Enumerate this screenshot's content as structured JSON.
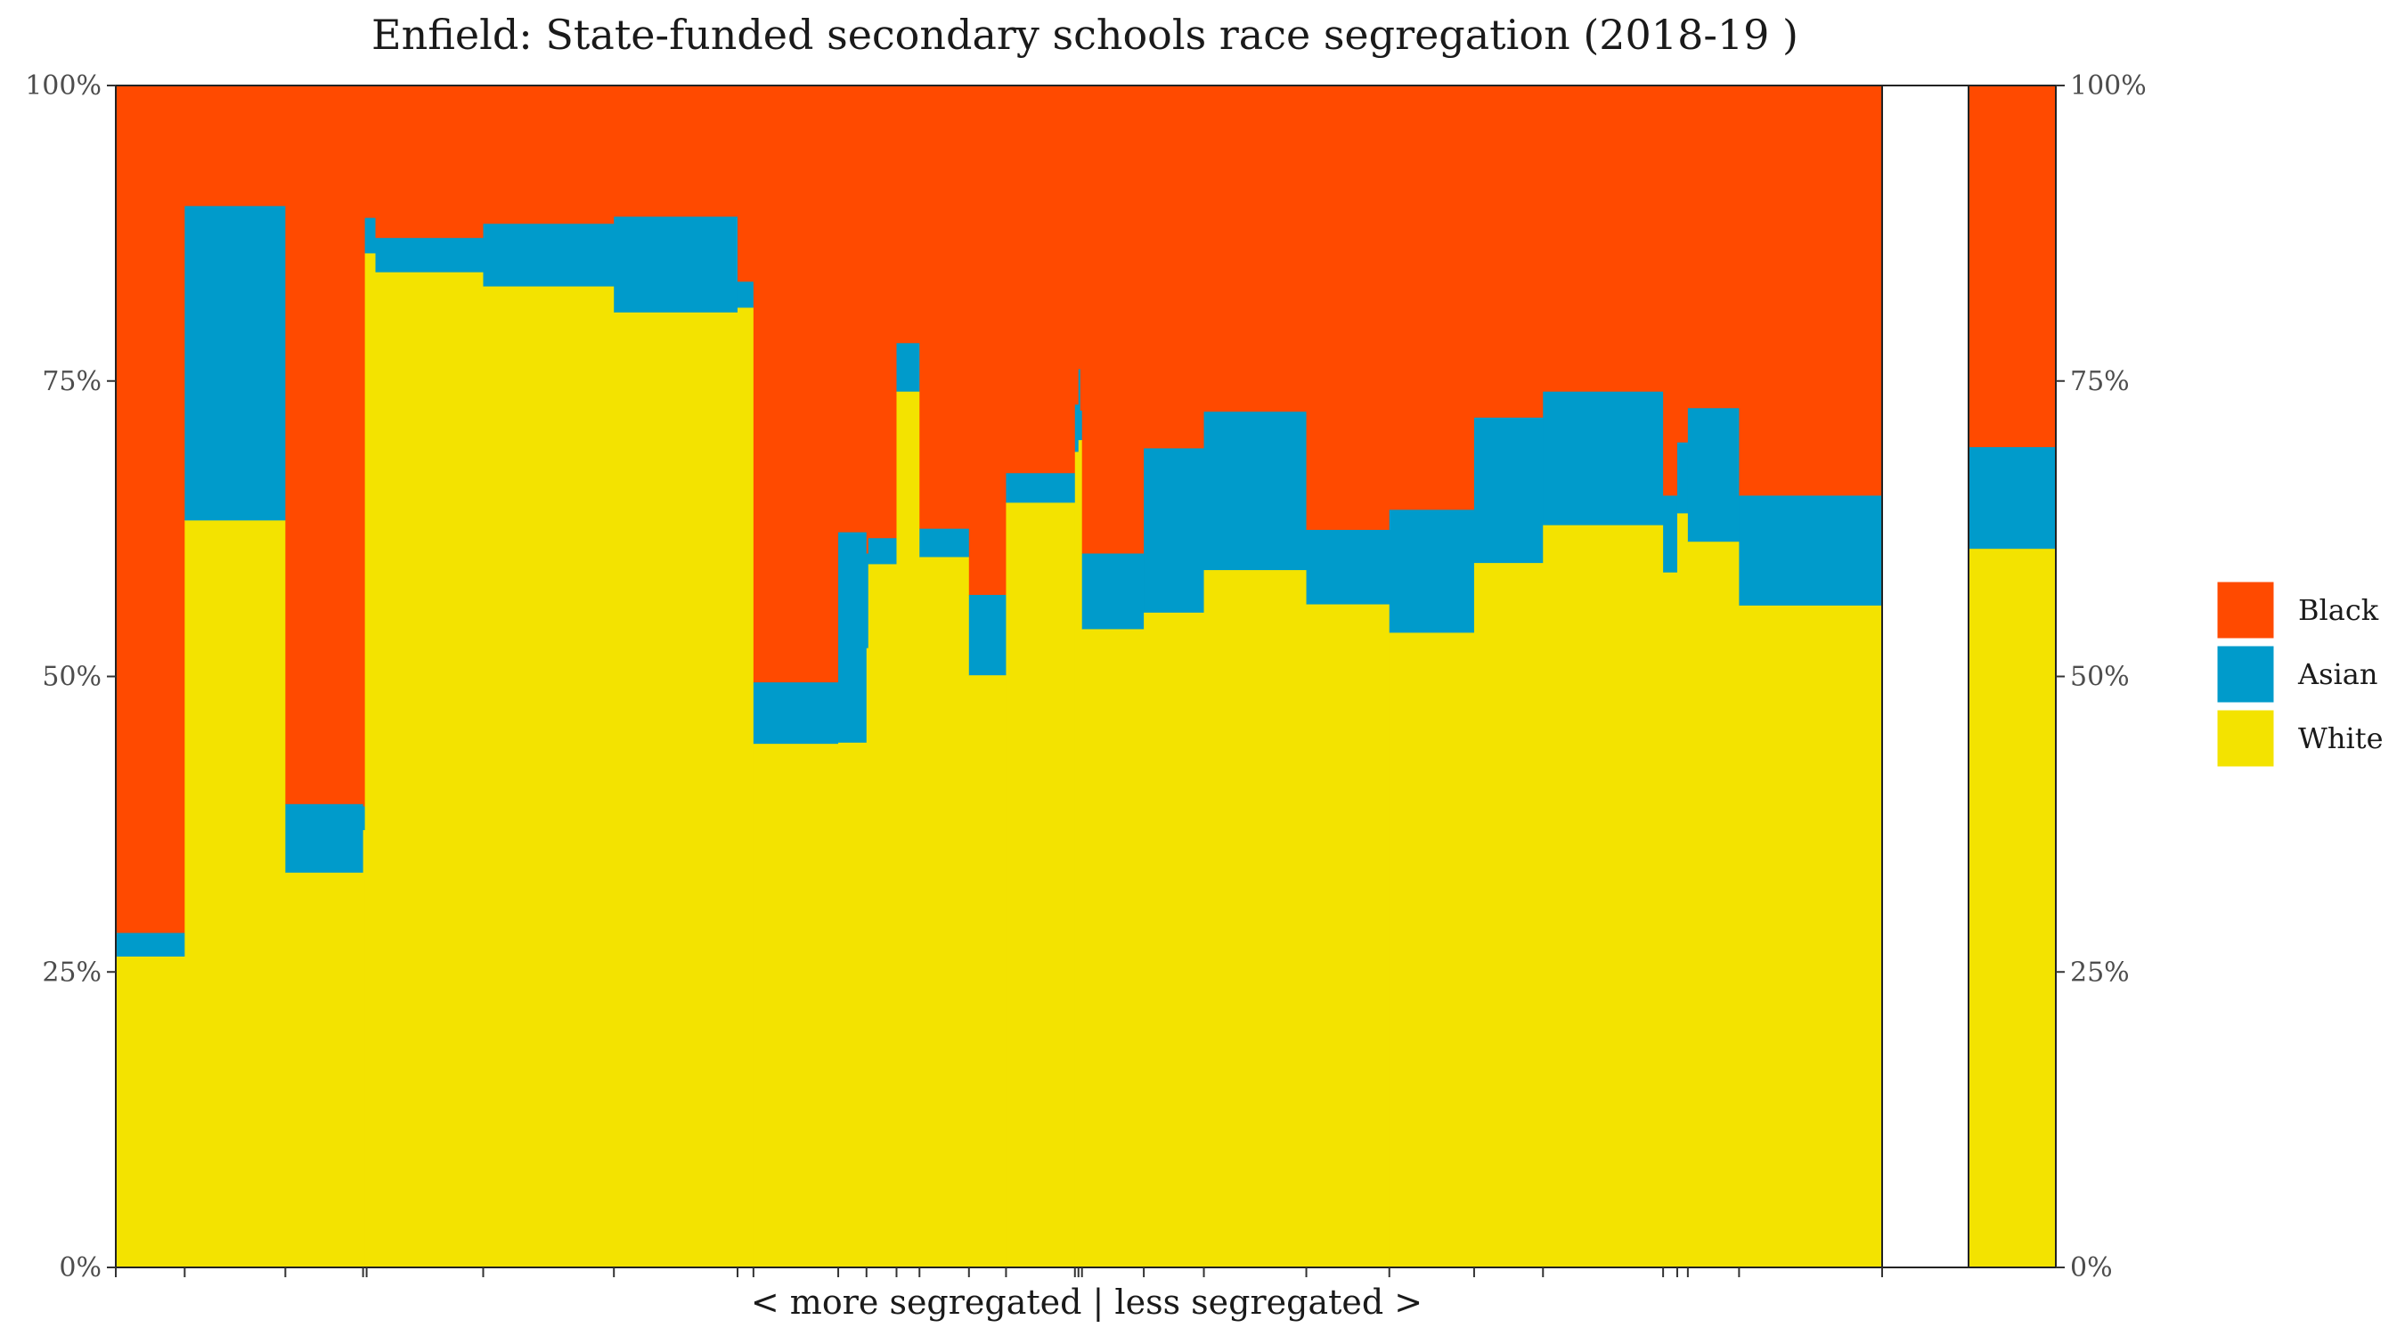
{
  "chart_data": {
    "type": "bar",
    "subtype": "stacked-variable-width",
    "title": "Enfield: State-funded secondary schools race segregation (2018-19 )",
    "xlabel": "< more segregated | less segregated >",
    "ylabel": "",
    "y_tick_labels": [
      "0%",
      "25%",
      "50%",
      "75%",
      "100%"
    ],
    "ylim": [
      0,
      1
    ],
    "grid": false,
    "legend_position": "right",
    "stack_order_bottom_to_top": [
      "White",
      "Asian",
      "Black"
    ],
    "series": [
      {
        "name": "Black",
        "color": "#FF4A00"
      },
      {
        "name": "Asian",
        "color": "#009BCB"
      },
      {
        "name": "White",
        "color": "#F3E300"
      }
    ],
    "x_range": [
      0,
      1
    ],
    "schools": [
      {
        "x0": 0.0,
        "x1": 0.039,
        "white": 0.263,
        "asian": 0.02
      },
      {
        "x0": 0.039,
        "x1": 0.096,
        "white": 0.632,
        "asian": 0.266
      },
      {
        "x0": 0.096,
        "x1": 0.14,
        "white": 0.334,
        "asian": 0.058
      },
      {
        "x0": 0.14,
        "x1": 0.141,
        "white": 0.37,
        "asian": 0.02
      },
      {
        "x0": 0.141,
        "x1": 0.147,
        "white": 0.858,
        "asian": 0.03
      },
      {
        "x0": 0.147,
        "x1": 0.208,
        "white": 0.842,
        "asian": 0.029
      },
      {
        "x0": 0.208,
        "x1": 0.282,
        "white": 0.83,
        "asian": 0.053
      },
      {
        "x0": 0.282,
        "x1": 0.352,
        "white": 0.808,
        "asian": 0.081
      },
      {
        "x0": 0.352,
        "x1": 0.361,
        "white": 0.812,
        "asian": 0.022
      },
      {
        "x0": 0.361,
        "x1": 0.409,
        "white": 0.443,
        "asian": 0.052
      },
      {
        "x0": 0.409,
        "x1": 0.425,
        "white": 0.444,
        "asian": 0.178
      },
      {
        "x0": 0.425,
        "x1": 0.426,
        "white": 0.524,
        "asian": 0.08
      },
      {
        "x0": 0.426,
        "x1": 0.442,
        "white": 0.595,
        "asian": 0.022
      },
      {
        "x0": 0.442,
        "x1": 0.455,
        "white": 0.741,
        "asian": 0.041
      },
      {
        "x0": 0.455,
        "x1": 0.483,
        "white": 0.601,
        "asian": 0.024
      },
      {
        "x0": 0.483,
        "x1": 0.504,
        "white": 0.501,
        "asian": 0.068
      },
      {
        "x0": 0.504,
        "x1": 0.543,
        "white": 0.647,
        "asian": 0.025
      },
      {
        "x0": 0.543,
        "x1": 0.545,
        "white": 0.69,
        "asian": 0.04
      },
      {
        "x0": 0.545,
        "x1": 0.546,
        "white": 0.7,
        "asian": 0.06
      },
      {
        "x0": 0.546,
        "x1": 0.547,
        "white": 0.7,
        "asian": 0.025
      },
      {
        "x0": 0.547,
        "x1": 0.582,
        "white": 0.54,
        "asian": 0.064
      },
      {
        "x0": 0.582,
        "x1": 0.616,
        "white": 0.554,
        "asian": 0.139
      },
      {
        "x0": 0.616,
        "x1": 0.674,
        "white": 0.59,
        "asian": 0.134
      },
      {
        "x0": 0.674,
        "x1": 0.721,
        "white": 0.561,
        "asian": 0.063
      },
      {
        "x0": 0.721,
        "x1": 0.769,
        "white": 0.537,
        "asian": 0.104
      },
      {
        "x0": 0.769,
        "x1": 0.808,
        "white": 0.596,
        "asian": 0.123
      },
      {
        "x0": 0.808,
        "x1": 0.876,
        "white": 0.628,
        "asian": 0.113
      },
      {
        "x0": 0.876,
        "x1": 0.884,
        "white": 0.588,
        "asian": 0.065
      },
      {
        "x0": 0.884,
        "x1": 0.89,
        "white": 0.638,
        "asian": 0.06
      },
      {
        "x0": 0.89,
        "x1": 0.919,
        "white": 0.614,
        "asian": 0.113
      },
      {
        "x0": 0.919,
        "x1": 1.0,
        "white": 0.56,
        "asian": 0.093
      }
    ],
    "x_ticks": [
      0.0,
      0.039,
      0.096,
      0.14,
      0.142,
      0.208,
      0.282,
      0.352,
      0.361,
      0.409,
      0.425,
      0.442,
      0.455,
      0.483,
      0.504,
      0.543,
      0.545,
      0.547,
      0.582,
      0.616,
      0.674,
      0.721,
      0.769,
      0.808,
      0.876,
      0.884,
      0.89,
      0.919,
      1.0
    ],
    "overall": {
      "white": 0.608,
      "asian": 0.086
    }
  }
}
